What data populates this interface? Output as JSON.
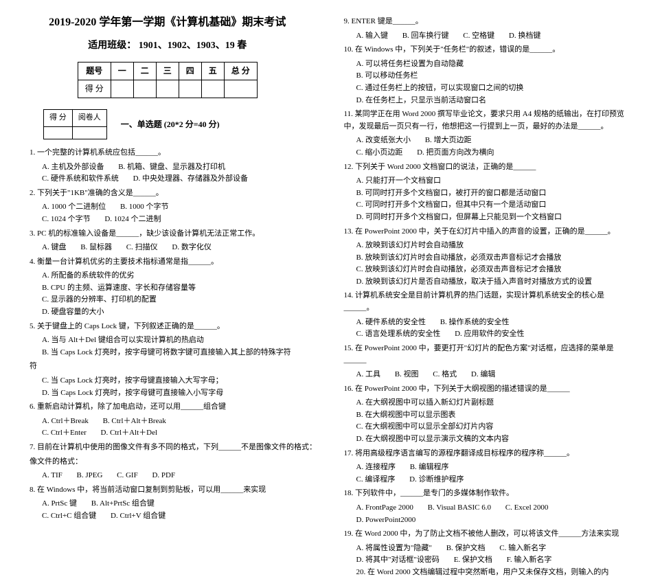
{
  "title": "2019-2020 学年第一学期《计算机基础》期末考试",
  "subtitle": "适用班级： 1901、1902、1903、19 春",
  "score_table": {
    "headers": [
      "题号",
      "一",
      "二",
      "三",
      "四",
      "五",
      "总 分"
    ],
    "row_label": "得 分"
  },
  "grade_box": {
    "c1": "得 分",
    "c2": "阅卷人"
  },
  "section1": "一、单选题 (20*2 分=40 分)",
  "left": {
    "q1": "1. 一个完整的计算机系统应包括______。",
    "q1a": "A. 主机及外部设备",
    "q1b": "B. 机箱、键盘、显示器及打印机",
    "q1c": "C. 硬件系统和软件系统",
    "q1d": "D. 中央处理器、存储器及外部设备",
    "q2": "2. 下列关于\"1KB\"准确的含义是______。",
    "q2a": "A. 1000 个二进制位",
    "q2b": "B. 1000 个字节",
    "q2c": "C. 1024 个字节",
    "q2d": "D. 1024 个二进制",
    "q3": "3. PC 机的标准输入设备是______，缺少该设备计算机无法正常工作。",
    "q3a": "A. 键盘",
    "q3b": "B. 鼠标器",
    "q3c": "C. 扫描仪",
    "q3d": "D. 数字化仪",
    "q4": "4. 衡量一台计算机优劣的主要技术指标通常是指______。",
    "q4a": "A. 所配备的系统软件的优劣",
    "q4b": "B. CPU 的主频、运算速度、字长和存储容量等",
    "q4c": "C. 显示器的分辨率、打印机的配置",
    "q4d": "D. 硬盘容量的大小",
    "q5": "5. 关于键盘上的 Caps Lock 键，下列叙述正确的是______。",
    "q5a": "A. 当与 Alt＋Del 键组合可以实现计算机的热启动",
    "q5b": "B. 当 Caps Lock 灯亮时，按字母键可将数字键可直接输入其上部的特殊字符",
    "q5c": "C. 当 Caps Lock 灯亮时，按字母键直接输入大写字母；",
    "q5d": "D. 当 Caps Lock 灯亮时，按字母键可直接输入小写字母",
    "q6": "6. 重新启动计算机，除了加电启动，还可以用______组合键",
    "q6a": "A. Ctrl＋Break",
    "q6b": "B. Ctrl＋Alt＋Break",
    "q6c": "C. Ctrl＋Enter",
    "q6d": "D. Ctrl＋Alt＋Del",
    "q7": "7. 目前在计算机中使用的图像文件有多不同的格式，下列______不是图像文件的格式：",
    "q7a": "A. TIF",
    "q7b": "B. JPEG",
    "q7c": "C. GIF",
    "q7d": "D. PDF",
    "q8": "8. 在 Windows 中，将当前活动窗口复制到剪贴板，可以用______来实现",
    "q8a": "A. PrtSc 键",
    "q8b": "B. Alt+PrtSc 组合键",
    "q8c": "C. Ctrl+C 组合键",
    "q8d": "D. Ctrl+V 组合键"
  },
  "right": {
    "q9": "9. ENTER 键是______。",
    "q9a": "A. 输入键",
    "q9b": "B. 回车换行键",
    "q9c": "C. 空格键",
    "q9d": "D. 换档键",
    "q10": "10. 在 Windows 中，下列关于\"任务栏\"的叙述，错误的是______。",
    "q10a": "A. 可以将任务栏设置为自动隐藏",
    "q10b": "B. 可以移动任务栏",
    "q10c": "C. 通过任务栏上的按钮，可以实现窗口之间的切换",
    "q10d": "D. 在任务栏上，只显示当前活动窗口名",
    "q11": "11. 某同学正在用 Word 2000 撰写毕业论文，要求只用 A4 规格的纸输出，在打印预览中，发现最后一页只有一行，他想把这一行提到上一页，最好的办法是______。",
    "q11a": "A. 改变纸张大小",
    "q11b": "B. 增大页边距",
    "q11c": "C. 缩小页边距",
    "q11d": "D. 把页面方向改为横向",
    "q12": "12. 下列关于 Word 2000 文档窗口的说法，正确的是______",
    "q12a": "A. 只能打开一个文档窗口",
    "q12b": "B. 可同时打开多个文档窗口，被打开的窗口都是活动窗口",
    "q12c": "C. 可同时打开多个文档窗口，但其中只有一个是活动窗口",
    "q12d": "D. 可同时打开多个文档窗口，但屏幕上只能见到一个文档窗口",
    "q13": "13. 在 PowerPoint 2000 中，关于在幻灯片中插入的声音的设置，正确的是______。",
    "q13a": "A. 放映到该幻灯片时会自动播放",
    "q13b": "B. 放映到该幻灯片时会自动播放，必须双击声音标记才会播放",
    "q13c": "C. 放映到该幻灯片时会自动播放，必须双击声音标记才会播放",
    "q13d": "D. 放映到该幻灯片是否自动播放，取决于插入声音时对播放方式的设置",
    "q14": "14. 计算机系统安全是目前计算机界的热门话题，实现计算机系统安全的核心是______。",
    "q14a": "A. 硬件系统的安全性",
    "q14b": "B. 操作系统的安全性",
    "q14c": "C. 语言处理系统的安全性",
    "q14d": "D. 应用软件的安全性",
    "q15": "15. 在 PowerPoint 2000 中，要更打开\"幻灯片的配色方案\"对话框，应选择的菜单是______",
    "q15a": "A. 工具",
    "q15b": "B. 视图",
    "q15c": "C. 格式",
    "q15d": "D. 编辑",
    "q16": "16. 在 PowerPoint 2000 中，下列关于大纲视图的描述错误的是______",
    "q16a": "A. 在大纲视图中可以插入新幻灯片副标题",
    "q16b": "B. 在大纲视图中可以显示图表",
    "q16c": "C. 在大纲视图中可以显示全部幻灯片内容",
    "q16d": "D. 在大纲视图中可以显示演示文稿的文本内容",
    "q17": "17. 将用高级程序语言编写的源程序翻译成目标程序的程序称______。",
    "q17a": "A. 连接程序",
    "q17b": "B. 编辑程序",
    "q17c": "C. 编译程序",
    "q17d": "D. 诊断维护程序",
    "q18": "18. 下列软件中，______是专门的多媒体制作软件。",
    "q18a": "A. FrontPage 2000",
    "q18b": "B. Visual BASIC 6.0",
    "q18c": "C. Excel 2000",
    "q18d": "D. PowerPoint2000",
    "q19": "19. 在 Word 2000 中，为了防止文档不被他人删改，可以将该文件______方法来实现",
    "q19a": "A. 将属性设置为\"隐藏\"",
    "q19b": "B. 保护文档",
    "q19c": "C. 输入新名字",
    "q19d": "D. 将其中\"对话框\"设密码",
    "q19e": "E. 保护文档",
    "q19f": "F. 输入新名字",
    "q20": "20. 在 Word 2000 文档编辑过程中突然断电，用户又未保存文档，则输入的内"
  }
}
